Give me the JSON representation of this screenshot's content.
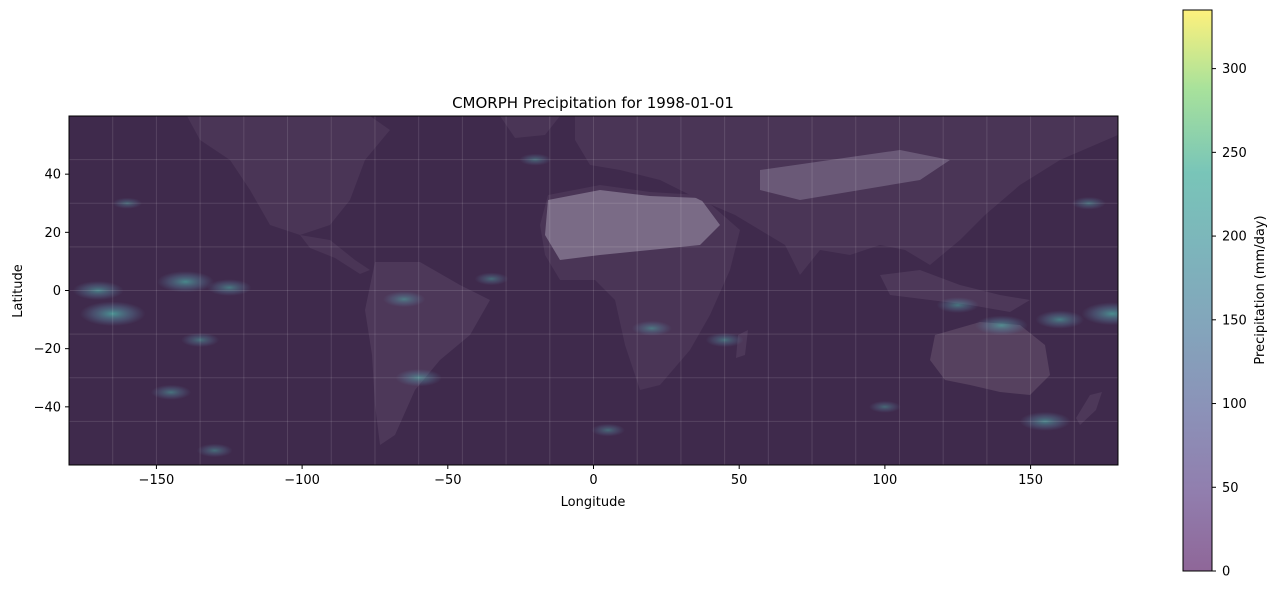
{
  "chart_data": {
    "type": "heatmap",
    "title": "CMORPH Precipitation for 1998-01-01",
    "xlabel": "Longitude",
    "ylabel": "Latitude",
    "xlim": [
      -180,
      180
    ],
    "ylim": [
      -60,
      60
    ],
    "xticks": [
      -150,
      -100,
      -50,
      0,
      50,
      100,
      150
    ],
    "yticks": [
      -40,
      -20,
      0,
      20,
      40
    ],
    "xtick_labels": [
      "−150",
      "−100",
      "−50",
      "0",
      "50",
      "100",
      "150"
    ],
    "ytick_labels": [
      "−40",
      "−20",
      "0",
      "20",
      "40"
    ],
    "grid": true,
    "colorbar": {
      "label": "Precipitation (mm/day)",
      "range": [
        0,
        335
      ],
      "ticks": [
        0,
        50,
        100,
        150,
        200,
        250,
        300
      ],
      "tick_labels": [
        "0",
        "50",
        "100",
        "150",
        "200",
        "250",
        "300"
      ],
      "colormap": "viridis",
      "alpha": 0.6
    },
    "colors": {
      "background_dark": "#3f2a4c",
      "land": "#54405f",
      "desert": "#7a6b86",
      "rain_low": "#5a7fa0",
      "rain_high": "#4fbfb0"
    },
    "precip_features": [
      {
        "lon": -140,
        "lat": 3,
        "value": 180
      },
      {
        "lon": -165,
        "lat": -8,
        "value": 220
      },
      {
        "lon": -125,
        "lat": 1,
        "value": 120
      },
      {
        "lon": -170,
        "lat": 0,
        "value": 150
      },
      {
        "lon": -145,
        "lat": -35,
        "value": 100
      },
      {
        "lon": -135,
        "lat": -17,
        "value": 90
      },
      {
        "lon": -130,
        "lat": -55,
        "value": 80
      },
      {
        "lon": -60,
        "lat": -30,
        "value": 130
      },
      {
        "lon": -65,
        "lat": -3,
        "value": 110
      },
      {
        "lon": -35,
        "lat": 4,
        "value": 70
      },
      {
        "lon": 20,
        "lat": -13,
        "value": 100
      },
      {
        "lon": 45,
        "lat": -17,
        "value": 90
      },
      {
        "lon": 140,
        "lat": -12,
        "value": 160
      },
      {
        "lon": 160,
        "lat": -10,
        "value": 140
      },
      {
        "lon": 178,
        "lat": -8,
        "value": 200
      },
      {
        "lon": 125,
        "lat": -5,
        "value": 110
      },
      {
        "lon": 155,
        "lat": -45,
        "value": 150
      },
      {
        "lon": 100,
        "lat": -40,
        "value": 60
      },
      {
        "lon": 170,
        "lat": 30,
        "value": 70
      },
      {
        "lon": -20,
        "lat": 45,
        "value": 60
      },
      {
        "lon": -160,
        "lat": 30,
        "value": 50
      },
      {
        "lon": 5,
        "lat": -48,
        "value": 70
      }
    ]
  }
}
